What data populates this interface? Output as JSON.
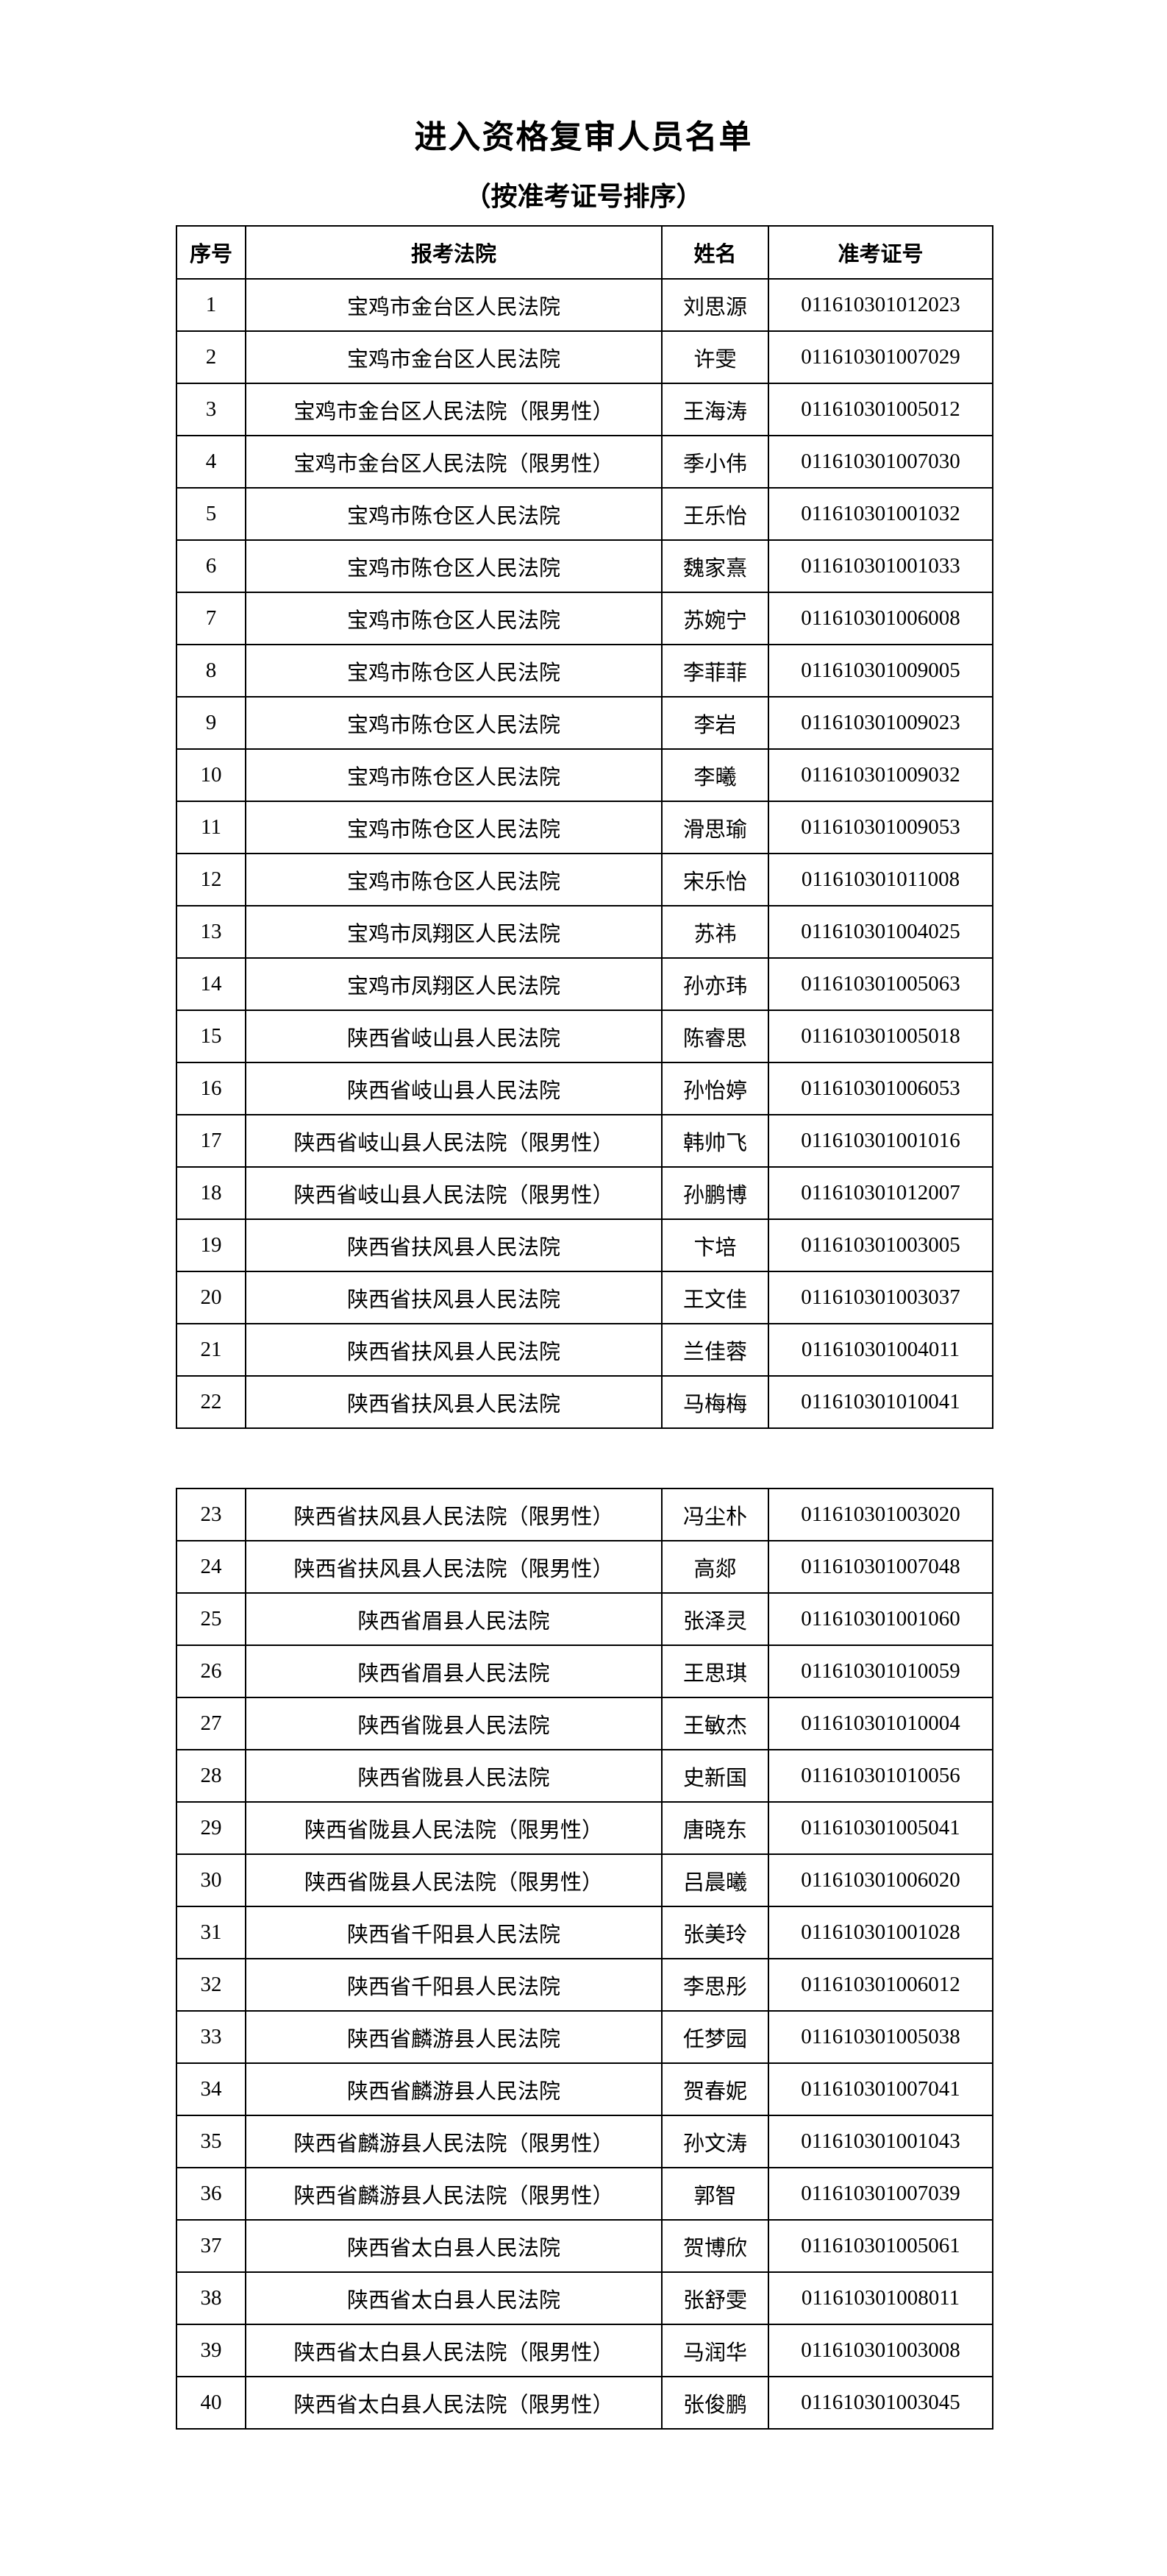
{
  "title": "进入资格复审人员名单",
  "subtitle": "（按准考证号排序）",
  "table": {
    "headers": [
      "序号",
      "报考法院",
      "姓名",
      "准考证号"
    ],
    "rows": [
      [
        "1",
        "宝鸡市金台区人民法院",
        "刘思源",
        "011610301012023"
      ],
      [
        "2",
        "宝鸡市金台区人民法院",
        "许雯",
        "011610301007029"
      ],
      [
        "3",
        "宝鸡市金台区人民法院（限男性）",
        "王海涛",
        "011610301005012"
      ],
      [
        "4",
        "宝鸡市金台区人民法院（限男性）",
        "季小伟",
        "011610301007030"
      ],
      [
        "5",
        "宝鸡市陈仓区人民法院",
        "王乐怡",
        "011610301001032"
      ],
      [
        "6",
        "宝鸡市陈仓区人民法院",
        "魏家熹",
        "011610301001033"
      ],
      [
        "7",
        "宝鸡市陈仓区人民法院",
        "苏婉宁",
        "011610301006008"
      ],
      [
        "8",
        "宝鸡市陈仓区人民法院",
        "李菲菲",
        "011610301009005"
      ],
      [
        "9",
        "宝鸡市陈仓区人民法院",
        "李岩",
        "011610301009023"
      ],
      [
        "10",
        "宝鸡市陈仓区人民法院",
        "李曦",
        "011610301009032"
      ],
      [
        "11",
        "宝鸡市陈仓区人民法院",
        "滑思瑜",
        "011610301009053"
      ],
      [
        "12",
        "宝鸡市陈仓区人民法院",
        "宋乐怡",
        "011610301011008"
      ],
      [
        "13",
        "宝鸡市凤翔区人民法院",
        "苏祎",
        "011610301004025"
      ],
      [
        "14",
        "宝鸡市凤翔区人民法院",
        "孙亦玮",
        "011610301005063"
      ],
      [
        "15",
        "陕西省岐山县人民法院",
        "陈睿思",
        "011610301005018"
      ],
      [
        "16",
        "陕西省岐山县人民法院",
        "孙怡婷",
        "011610301006053"
      ],
      [
        "17",
        "陕西省岐山县人民法院（限男性）",
        "韩帅飞",
        "011610301001016"
      ],
      [
        "18",
        "陕西省岐山县人民法院（限男性）",
        "孙鹏博",
        "011610301012007"
      ],
      [
        "19",
        "陕西省扶风县人民法院",
        "卞培",
        "011610301003005"
      ],
      [
        "20",
        "陕西省扶风县人民法院",
        "王文佳",
        "011610301003037"
      ],
      [
        "21",
        "陕西省扶风县人民法院",
        "兰佳蓉",
        "011610301004011"
      ],
      [
        "22",
        "陕西省扶风县人民法院",
        "马梅梅",
        "011610301010041"
      ],
      [
        "23",
        "陕西省扶风县人民法院（限男性）",
        "冯尘朴",
        "011610301003020"
      ],
      [
        "24",
        "陕西省扶风县人民法院（限男性）",
        "高郯",
        "011610301007048"
      ],
      [
        "25",
        "陕西省眉县人民法院",
        "张泽灵",
        "011610301001060"
      ],
      [
        "26",
        "陕西省眉县人民法院",
        "王思琪",
        "011610301010059"
      ],
      [
        "27",
        "陕西省陇县人民法院",
        "王敏杰",
        "011610301010004"
      ],
      [
        "28",
        "陕西省陇县人民法院",
        "史新国",
        "011610301010056"
      ],
      [
        "29",
        "陕西省陇县人民法院（限男性）",
        "唐晓东",
        "011610301005041"
      ],
      [
        "30",
        "陕西省陇县人民法院（限男性）",
        "吕晨曦",
        "011610301006020"
      ],
      [
        "31",
        "陕西省千阳县人民法院",
        "张美玲",
        "011610301001028"
      ],
      [
        "32",
        "陕西省千阳县人民法院",
        "李思彤",
        "011610301006012"
      ],
      [
        "33",
        "陕西省麟游县人民法院",
        "任梦园",
        "011610301005038"
      ],
      [
        "34",
        "陕西省麟游县人民法院",
        "贺春妮",
        "011610301007041"
      ],
      [
        "35",
        "陕西省麟游县人民法院（限男性）",
        "孙文涛",
        "011610301001043"
      ],
      [
        "36",
        "陕西省麟游县人民法院（限男性）",
        "郭智",
        "011610301007039"
      ],
      [
        "37",
        "陕西省太白县人民法院",
        "贺博欣",
        "011610301005061"
      ],
      [
        "38",
        "陕西省太白县人民法院",
        "张舒雯",
        "011610301008011"
      ],
      [
        "39",
        "陕西省太白县人民法院（限男性）",
        "马润华",
        "011610301003008"
      ],
      [
        "40",
        "陕西省太白县人民法院（限男性）",
        "张俊鹏",
        "011610301003045"
      ]
    ]
  }
}
